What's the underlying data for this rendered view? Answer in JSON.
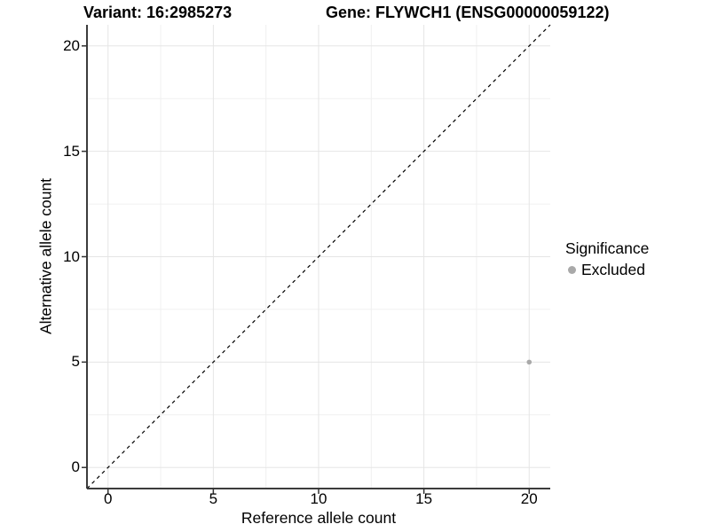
{
  "chart_data": {
    "type": "scatter",
    "titles": {
      "left": "Variant: 16:2985273",
      "right": "Gene: FLYWCH1 (ENSG00000059122)"
    },
    "xlabel": "Reference allele count",
    "ylabel": "Alternative allele count",
    "xlim": [
      -1,
      21
    ],
    "ylim": [
      -1,
      21
    ],
    "x_ticks": [
      0,
      5,
      10,
      15,
      20
    ],
    "y_ticks": [
      0,
      5,
      10,
      15,
      20
    ],
    "x_tick_labels": [
      "0",
      "5",
      "10",
      "15",
      "20"
    ],
    "y_tick_labels": [
      "0",
      "5",
      "10",
      "15",
      "20"
    ],
    "x_minor_ticks": [
      2.5,
      7.5,
      12.5,
      17.5
    ],
    "y_minor_ticks": [
      2.5,
      7.5,
      12.5,
      17.5
    ],
    "grid": true,
    "series": [
      {
        "name": "Excluded",
        "color": "#a9a9a9",
        "points": [
          {
            "x": 20,
            "y": 5
          }
        ]
      }
    ],
    "reference_line": {
      "type": "identity",
      "from": [
        -1,
        -1
      ],
      "to": [
        21,
        21
      ],
      "style": "dashed",
      "color": "#000000"
    },
    "legend": {
      "position": "right",
      "title": "Significance",
      "entries": [
        {
          "label": "Excluded",
          "color": "#a9a9a9"
        }
      ]
    },
    "colors": {
      "axis_line": "#3c3c3c",
      "tick_mark": "#333333",
      "grid_major": "#e5e5e5",
      "grid_minor": "#f0f0f0",
      "background": "#ffffff"
    }
  }
}
